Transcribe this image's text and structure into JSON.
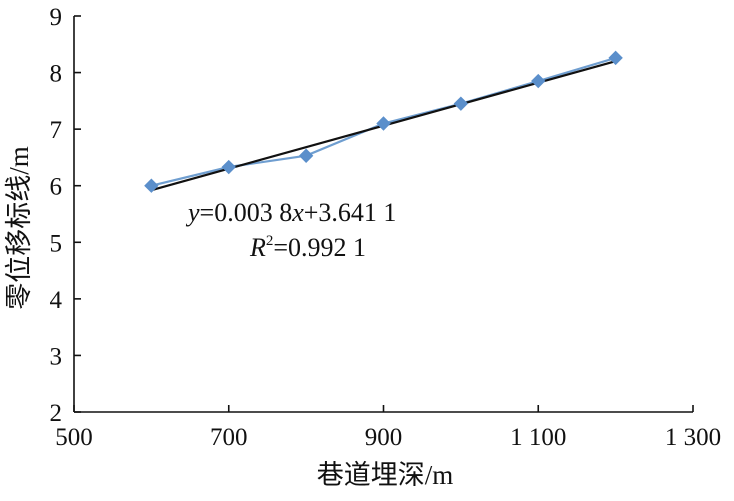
{
  "chart_data": {
    "type": "scatter",
    "title": "",
    "xlabel": "巷道埋深/m",
    "ylabel": "零位移标线/m",
    "xlim": [
      500,
      1300
    ],
    "ylim": [
      2,
      9
    ],
    "x_ticks": [
      500,
      700,
      900,
      1100,
      1300
    ],
    "x_tick_labels": [
      "500",
      "700",
      "900",
      "1 100",
      "1 300"
    ],
    "y_ticks": [
      2,
      3,
      4,
      5,
      6,
      7,
      8,
      9
    ],
    "y_tick_labels": [
      "2",
      "3",
      "4",
      "5",
      "6",
      "7",
      "8",
      "9"
    ],
    "series": [
      {
        "x": [
          600,
          700,
          800,
          900,
          1000,
          1100,
          1200
        ],
        "y": [
          6.0,
          6.33,
          6.53,
          7.1,
          7.45,
          7.85,
          8.26
        ]
      }
    ],
    "trendline": {
      "slope": 0.0038,
      "intercept": 3.6411,
      "x_range": [
        600,
        1200
      ],
      "equation_y": "y",
      "equation_rest": "=0.003 8",
      "equation_x": "x",
      "equation_tail": "+3.641 1",
      "r2_label": "R",
      "r2_sup": "2",
      "r2_value": "=0.992 1"
    },
    "grid": false,
    "legend": "none",
    "colors": {
      "series": "#6f9ed0",
      "marker": "#5b8fcb",
      "trendline": "#111111",
      "axis": "#111111"
    }
  }
}
